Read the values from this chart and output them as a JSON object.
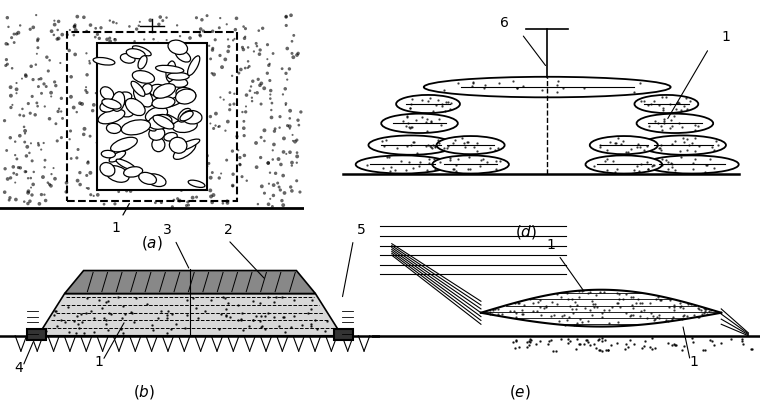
{
  "bg_color": "#ffffff",
  "panels": [
    "a",
    "b",
    "d",
    "e"
  ]
}
